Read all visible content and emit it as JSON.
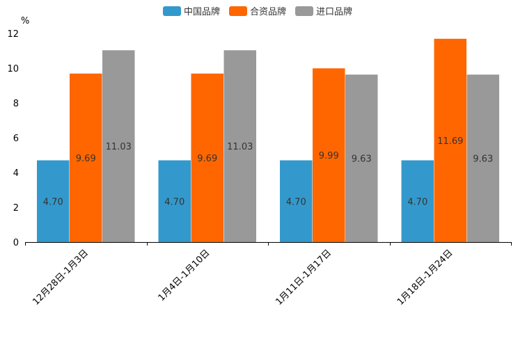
{
  "chart_data": {
    "type": "bar",
    "categories": [
      "12月28日-1月3日",
      "1月4日-1月10日",
      "1月11日-1月17日",
      "1月18日-1月24日"
    ],
    "series": [
      {
        "name": "中国品牌",
        "color": "#3399cc",
        "values": [
          4.7,
          4.7,
          4.7,
          4.7
        ],
        "labels": [
          "4.70",
          "4.70",
          "4.70",
          "4.70"
        ]
      },
      {
        "name": "合资品牌",
        "color": "#ff6600",
        "values": [
          9.69,
          9.69,
          9.99,
          11.69
        ],
        "labels": [
          "9.69",
          "9.69",
          "9.99",
          "11.69"
        ]
      },
      {
        "name": "进口品牌",
        "color": "#999999",
        "values": [
          11.03,
          11.03,
          9.63,
          9.63
        ],
        "labels": [
          "11.03",
          "11.03",
          "9.63",
          "9.63"
        ]
      }
    ],
    "ylabel": "%",
    "ylim": [
      0,
      12
    ],
    "yticks": [
      "0",
      "2",
      "4",
      "6",
      "8",
      "10",
      "12"
    ],
    "legend_position": "top-center",
    "grid": false
  }
}
